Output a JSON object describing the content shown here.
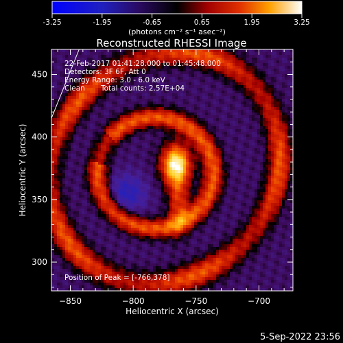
{
  "chart_data": {
    "type": "heatmap",
    "title": "Reconstructed RHESSI Image",
    "xlabel": "Heliocentric X (arcsec)",
    "ylabel": "Heliocentric Y (arcsec)",
    "xlim": [
      -865,
      -673
    ],
    "ylim": [
      277,
      470
    ],
    "x_ticks": [
      -850,
      -800,
      -750,
      -700
    ],
    "y_ticks": [
      300,
      350,
      400,
      450
    ],
    "colorbar": {
      "range": [
        -3.25,
        3.25
      ],
      "ticks": [
        "-3.25",
        "-1.95",
        "-0.65",
        "0.65",
        "1.95",
        "3.25"
      ],
      "unit_label": "(photons cm⁻² s⁻¹ asec⁻²)",
      "colormap": "blue-black-purple-red-yellow-white"
    },
    "annotations": [
      "22-Feb-2017 01:41:28.000 to 01:45:48.000",
      "Detectors: 3F 6F, Att 0",
      "Energy Range: 3.0 - 6.0 keV",
      "Clean",
      "Total counts: 2.57E+04"
    ],
    "peak_label": "Position of Peak = [-766,378]",
    "peak": {
      "x": -766,
      "y": 378,
      "value": 3.25
    },
    "features": {
      "core_source": {
        "x": -766,
        "y": 378
      },
      "negative_hole": {
        "x": -805,
        "y": 355,
        "value": -1.3
      },
      "inner_ring_center": {
        "x": -790,
        "y": 370
      },
      "outer_ring_center": {
        "x": -775,
        "y": 375
      }
    }
  },
  "footer": {
    "date": "5-Sep-2022 23:56"
  }
}
